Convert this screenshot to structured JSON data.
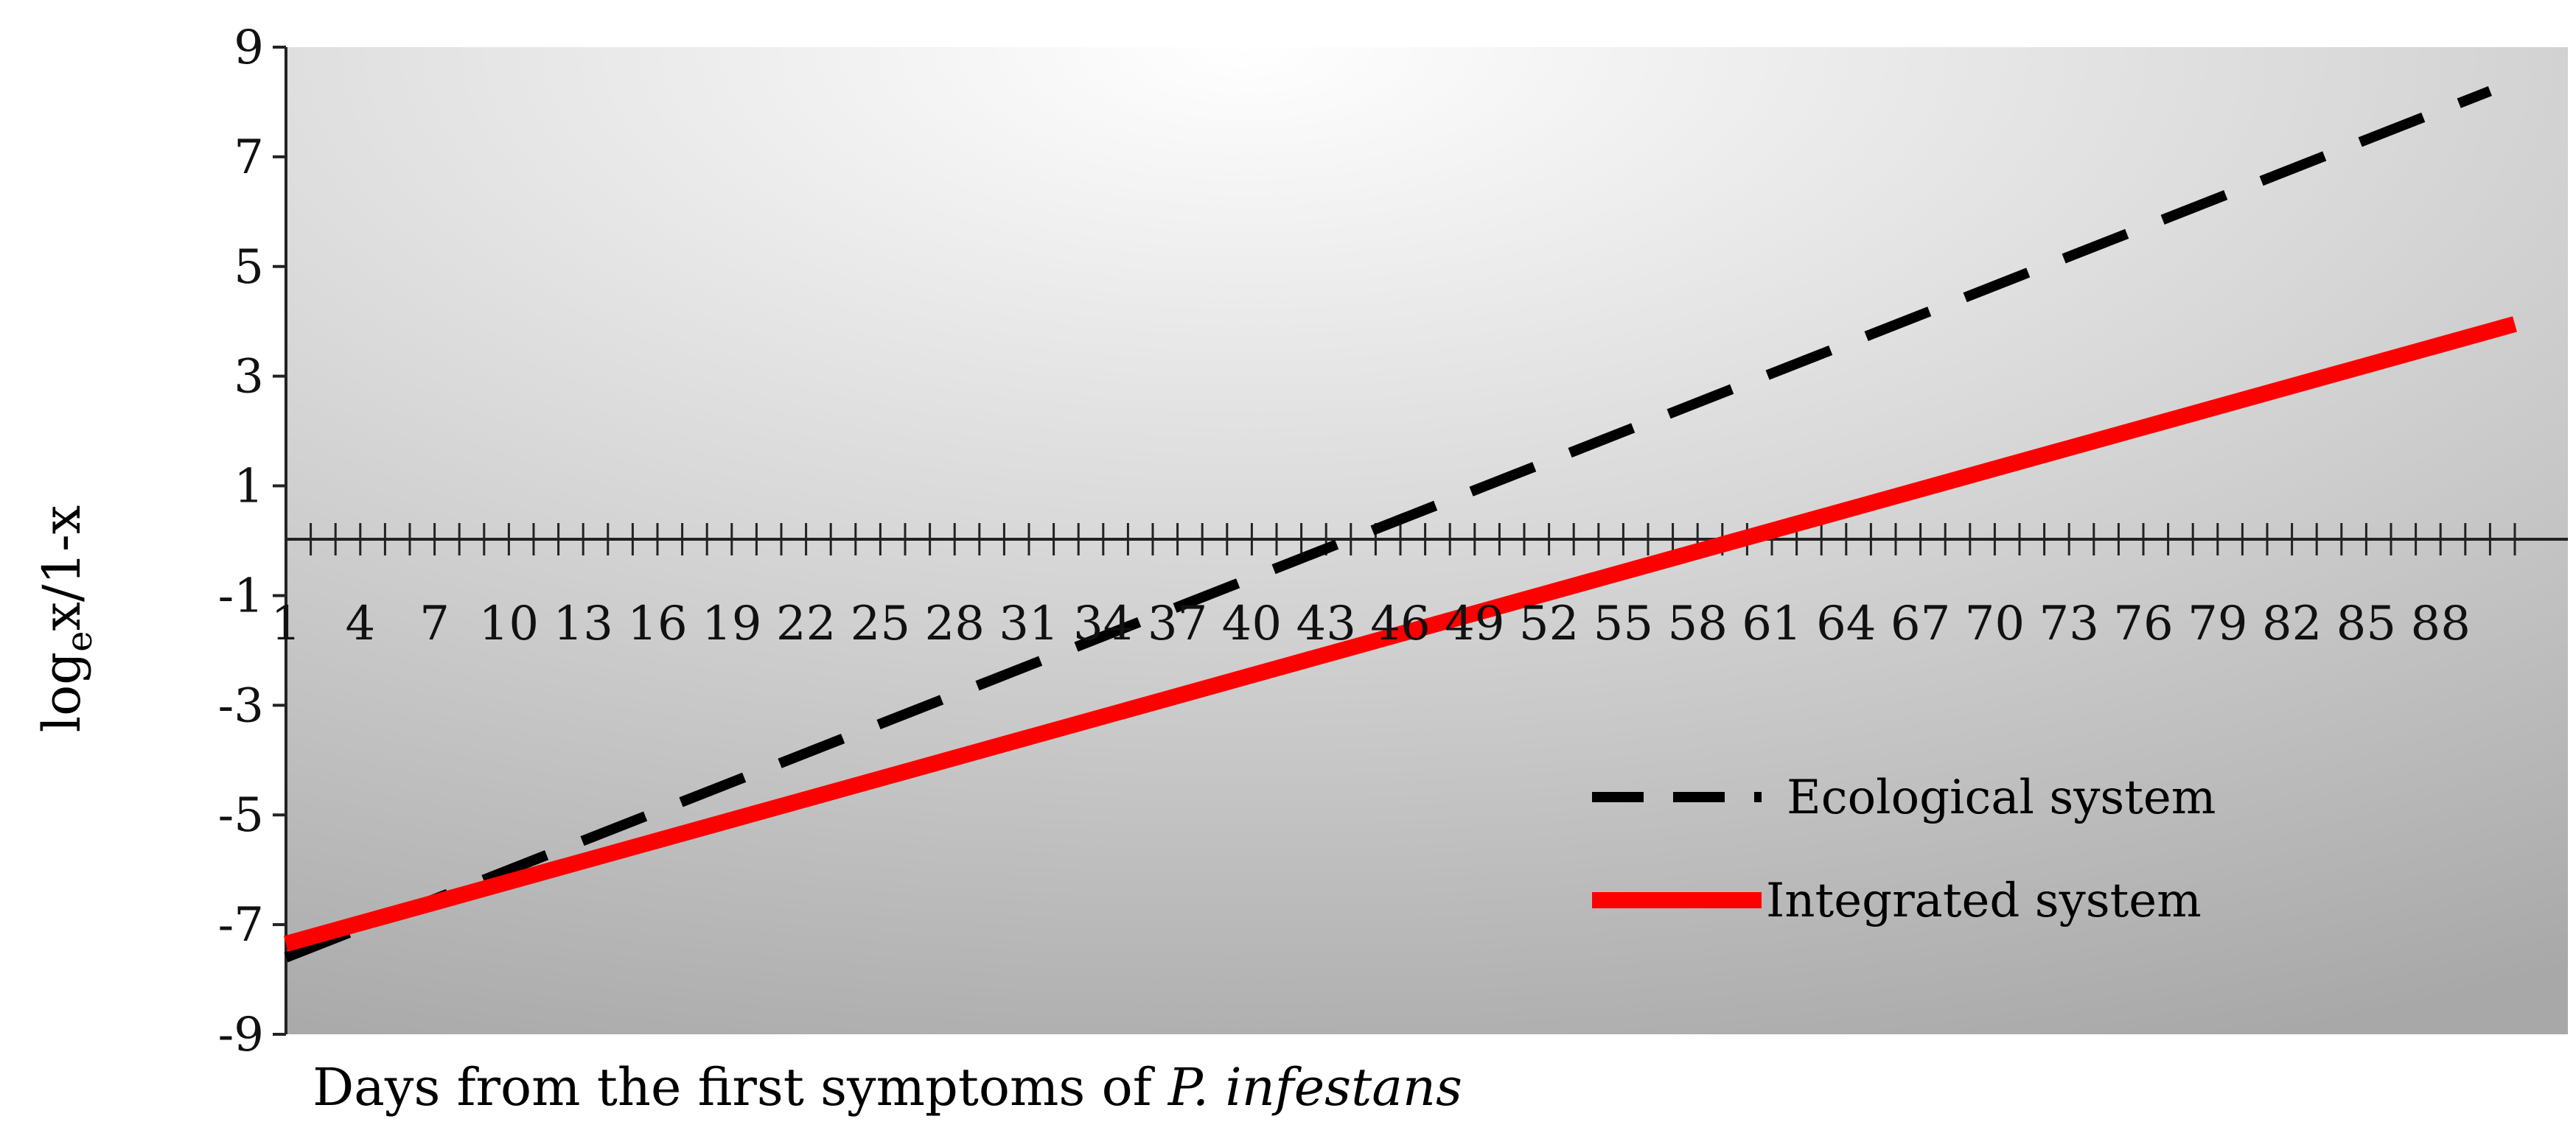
{
  "chart_data": {
    "type": "line",
    "x": {
      "min": 1,
      "max": 91
    },
    "xticks": [
      1,
      4,
      7,
      10,
      13,
      16,
      19,
      22,
      25,
      28,
      31,
      34,
      37,
      40,
      43,
      46,
      49,
      52,
      55,
      58,
      61,
      64,
      67,
      70,
      73,
      76,
      79,
      82,
      85,
      88
    ],
    "yticks": [
      9,
      7,
      5,
      3,
      1,
      -1,
      -3,
      -5,
      -7,
      -9
    ],
    "ylim": [
      -9,
      9
    ],
    "xlabel_prefix": "Days from the first symptoms of ",
    "xlabel_italic": "P. infestans",
    "ylabel_main": "log",
    "ylabel_sub": "e",
    "ylabel_rest": "x/1-x",
    "grid": false,
    "background": "vertical gray gradient",
    "legend_position": "lower-right",
    "series": [
      {
        "name": "Ecological system",
        "style": "dashed",
        "color": "#000000",
        "x": [
          1,
          90
        ],
        "y": [
          -7.6,
          8.2
        ]
      },
      {
        "name": "Integrated system",
        "style": "solid",
        "color": "#ff0000",
        "x": [
          1,
          91
        ],
        "y": [
          -7.35,
          3.95
        ]
      }
    ]
  }
}
